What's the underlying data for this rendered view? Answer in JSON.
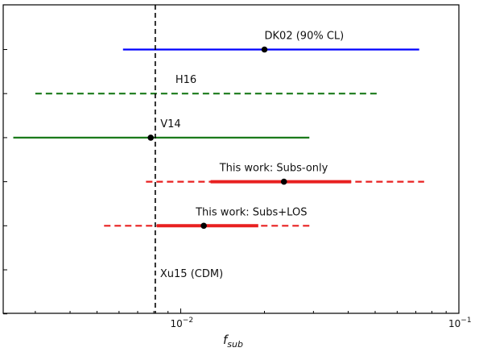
{
  "chart_data": {
    "type": "interval",
    "xscale": "log",
    "xlim": [
      0.0023,
      0.1
    ],
    "xlabel": "f",
    "xlabel_sub": "sub",
    "x_ticks": [
      {
        "value": 0.01,
        "base": "10",
        "exp": "−2"
      },
      {
        "value": 0.1,
        "base": "10",
        "exp": "−1"
      }
    ],
    "y_tick_count": 7,
    "grid": false,
    "vline": {
      "x": 0.0081,
      "label": "Xu15 (CDM)",
      "color": "#000000",
      "style": "dashed"
    },
    "intervals": [
      {
        "label": "DK02 (90% CL)",
        "color": "#0000ff",
        "outer": [
          0.0062,
          0.072
        ],
        "point": 0.02,
        "outer_style": "solid"
      },
      {
        "label": "H16",
        "color": "#1a7a1a",
        "outer": [
          0.003,
          0.052
        ],
        "outer_style": "dashed"
      },
      {
        "label": "V14",
        "color": "#1a7a1a",
        "outer": [
          0.0025,
          0.029
        ],
        "point": 0.0078,
        "outer_style": "solid"
      },
      {
        "label": "This work: Subs-only",
        "color": "#e82020",
        "outer": [
          0.0075,
          0.075
        ],
        "inner": [
          0.0128,
          0.041
        ],
        "point": 0.0235,
        "outer_style": "dashed"
      },
      {
        "label": "This work: Subs+LOS",
        "color": "#e82020",
        "outer": [
          0.0053,
          0.029
        ],
        "inner": [
          0.0082,
          0.019
        ],
        "point": 0.0121,
        "outer_style": "dashed"
      }
    ]
  }
}
